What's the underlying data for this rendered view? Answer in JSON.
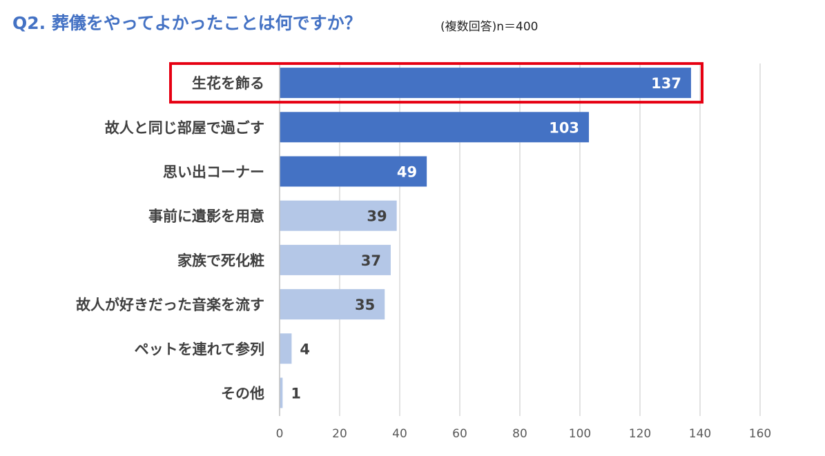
{
  "header": {
    "title": "Q2. 葬儀をやってよかったことは何ですか？",
    "subtitle": "(複数回答)n＝400"
  },
  "colors": {
    "title": "#4472c4",
    "bar_dark": "#4472c4",
    "bar_light": "#b4c7e7",
    "highlight": "#e60012",
    "grid": "#d9d9d9",
    "label": "#404040"
  },
  "chart_data": {
    "type": "bar",
    "orientation": "horizontal",
    "title": "Q2. 葬儀をやってよかったことは何ですか？",
    "subtitle": "(複数回答)n＝400",
    "categories": [
      "生花を飾る",
      "故人と同じ部屋で過ごす",
      "思い出コーナー",
      "事前に遺影を用意",
      "家族で死化粧",
      "故人が好きだった音楽を流す",
      "ペットを連れて参列",
      "その他"
    ],
    "values": [
      137,
      103,
      49,
      39,
      37,
      35,
      4,
      1
    ],
    "emphasized": [
      true,
      true,
      true,
      false,
      false,
      false,
      false,
      false
    ],
    "highlighted_index": 0,
    "xlim": [
      0,
      160
    ],
    "xticks": [
      0,
      20,
      40,
      60,
      80,
      100,
      120,
      140,
      160
    ],
    "grid": true,
    "xlabel": "",
    "ylabel": ""
  }
}
